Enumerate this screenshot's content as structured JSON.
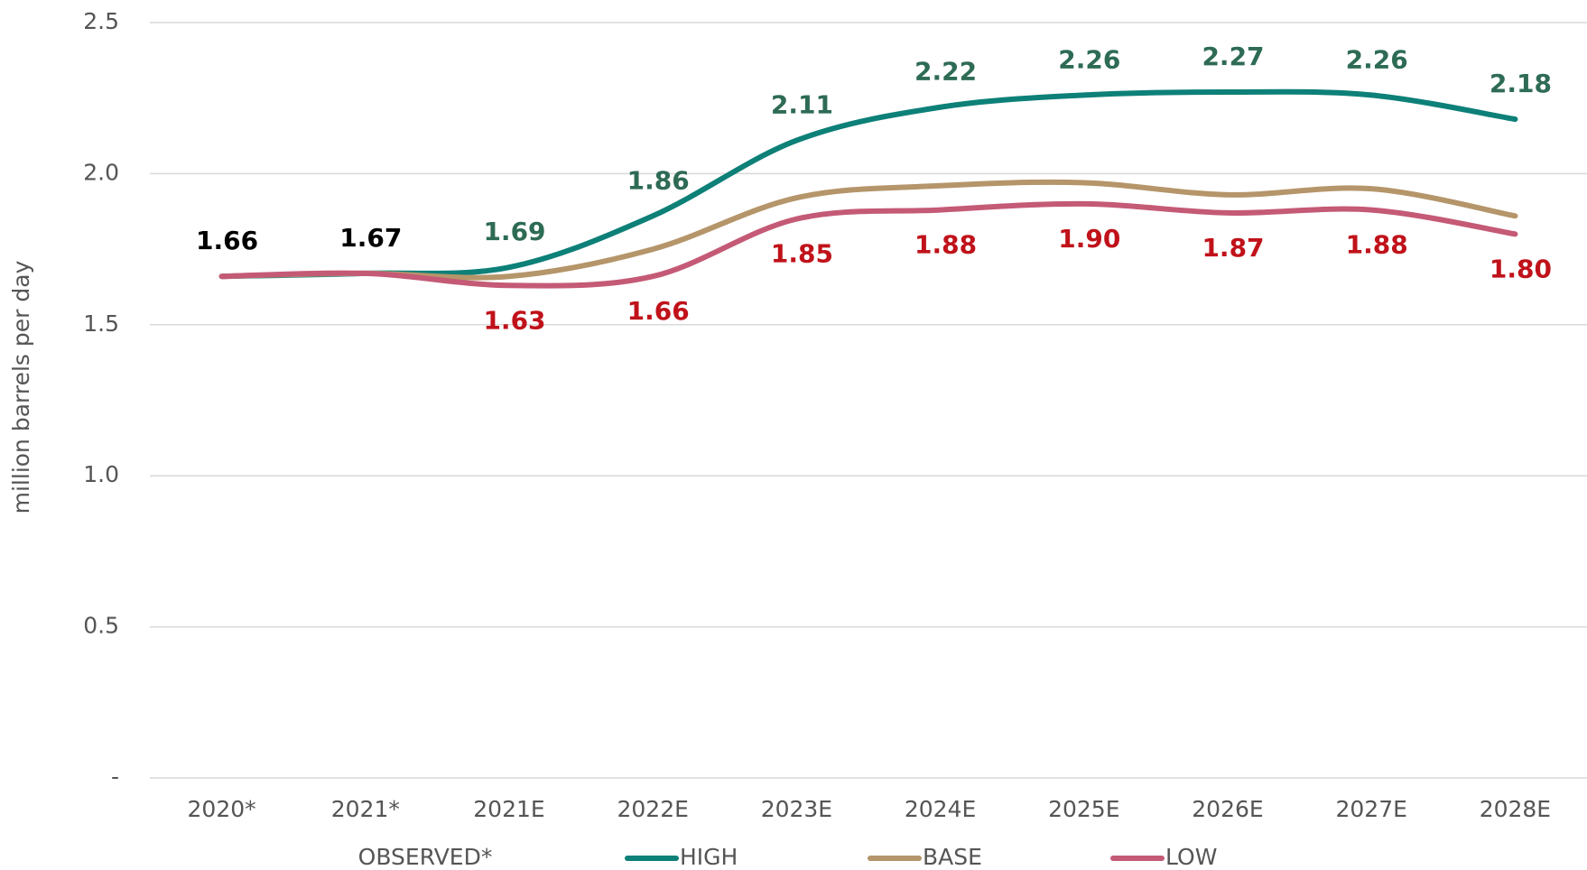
{
  "chart_data": {
    "type": "line",
    "y_label": "million barrels per day",
    "categories": [
      "2020*",
      "2021*",
      "2021E",
      "2022E",
      "2023E",
      "2024E",
      "2025E",
      "2026E",
      "2027E",
      "2028E"
    ],
    "ylim": [
      0,
      2.5
    ],
    "yticks": [
      {
        "value": 0,
        "label": "-"
      },
      0.5,
      {
        "value": 1,
        "label": "1.0"
      },
      1.5,
      {
        "value": 2,
        "label": "2.0"
      },
      2.5
    ],
    "grid": true,
    "smooth": true,
    "legend": "bottom",
    "series": [
      {
        "name": "OBSERVED*",
        "color": "#000000",
        "label_color": "#000000",
        "show_line": false,
        "label_position": "above",
        "values": [
          1.66,
          1.67,
          null,
          null,
          null,
          null,
          null,
          null,
          null,
          null
        ],
        "value_labels": [
          "1.66",
          "1.67",
          null,
          null,
          null,
          null,
          null,
          null,
          null,
          null
        ]
      },
      {
        "name": "HIGH",
        "color": "#0d8078",
        "label_color": "#2e6b55",
        "show_line": true,
        "label_position": "above",
        "values": [
          1.66,
          1.67,
          1.69,
          1.86,
          2.11,
          2.22,
          2.26,
          2.27,
          2.26,
          2.18
        ],
        "value_labels": [
          null,
          null,
          "1.69",
          "1.86",
          "2.11",
          "2.22",
          "2.26",
          "2.27",
          "2.26",
          "2.18"
        ]
      },
      {
        "name": "BASE",
        "color": "#b5956a",
        "show_line": true,
        "values": [
          1.66,
          1.67,
          1.66,
          1.75,
          1.92,
          1.96,
          1.97,
          1.93,
          1.95,
          1.86
        ]
      },
      {
        "name": "LOW",
        "color": "#c45a76",
        "label_color": "#c0121a",
        "show_line": true,
        "label_position": "below",
        "values": [
          1.66,
          1.67,
          1.63,
          1.66,
          1.85,
          1.88,
          1.9,
          1.87,
          1.88,
          1.8
        ],
        "value_labels": [
          null,
          null,
          "1.63",
          "1.66",
          "1.85",
          "1.88",
          "1.90",
          "1.87",
          "1.88",
          "1.80"
        ]
      }
    ]
  }
}
